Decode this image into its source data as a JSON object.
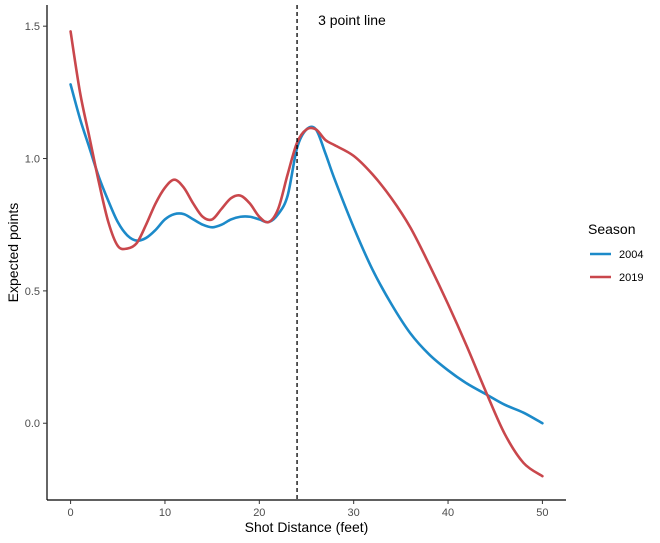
{
  "chart_data": {
    "type": "line",
    "xlabel": "Shot Distance (feet)",
    "ylabel": "Expected points",
    "xlim": [
      -2.5,
      52.5
    ],
    "ylim": [
      -0.29,
      1.58
    ],
    "x_ticks": [
      0,
      10,
      20,
      30,
      40,
      50
    ],
    "x_tick_labels": [
      "0",
      "10",
      "20",
      "30",
      "40",
      "50"
    ],
    "y_ticks": [
      0.0,
      0.5,
      1.0,
      1.5
    ],
    "y_tick_labels": [
      "0.0",
      "0.5",
      "1.0",
      "1.5"
    ],
    "grid": false,
    "legend": {
      "title": "Season",
      "placement": "right"
    },
    "annotation": {
      "text": "3 point line",
      "x": 24
    },
    "series": [
      {
        "name": "2004",
        "color": "#1c8ac9",
        "x": [
          0,
          1,
          2,
          3,
          4,
          5,
          6,
          7,
          8,
          9,
          10,
          11,
          12,
          13,
          14,
          15,
          16,
          17,
          18,
          19,
          20,
          21,
          22,
          23,
          24,
          25,
          26,
          27,
          28,
          30,
          32,
          34,
          36,
          38,
          40,
          42,
          44,
          46,
          48,
          50
        ],
        "y": [
          1.28,
          1.15,
          1.04,
          0.93,
          0.84,
          0.76,
          0.71,
          0.69,
          0.7,
          0.73,
          0.77,
          0.79,
          0.79,
          0.77,
          0.75,
          0.74,
          0.75,
          0.77,
          0.78,
          0.78,
          0.77,
          0.76,
          0.79,
          0.86,
          1.04,
          1.11,
          1.11,
          1.02,
          0.92,
          0.74,
          0.58,
          0.45,
          0.34,
          0.26,
          0.2,
          0.15,
          0.11,
          0.07,
          0.04,
          0.0
        ]
      },
      {
        "name": "2019",
        "color": "#c9474c",
        "x": [
          0,
          1,
          2,
          3,
          4,
          5,
          6,
          7,
          8,
          9,
          10,
          11,
          12,
          13,
          14,
          15,
          16,
          17,
          18,
          19,
          20,
          21,
          22,
          23,
          24,
          25,
          26,
          27,
          28,
          30,
          32,
          34,
          36,
          38,
          40,
          42,
          44,
          46,
          48,
          50
        ],
        "y": [
          1.48,
          1.25,
          1.08,
          0.91,
          0.76,
          0.67,
          0.66,
          0.68,
          0.75,
          0.83,
          0.89,
          0.92,
          0.89,
          0.83,
          0.78,
          0.77,
          0.81,
          0.85,
          0.86,
          0.83,
          0.78,
          0.76,
          0.81,
          0.94,
          1.06,
          1.11,
          1.11,
          1.07,
          1.05,
          1.01,
          0.94,
          0.85,
          0.74,
          0.6,
          0.45,
          0.29,
          0.12,
          -0.04,
          -0.15,
          -0.2
        ]
      }
    ]
  }
}
